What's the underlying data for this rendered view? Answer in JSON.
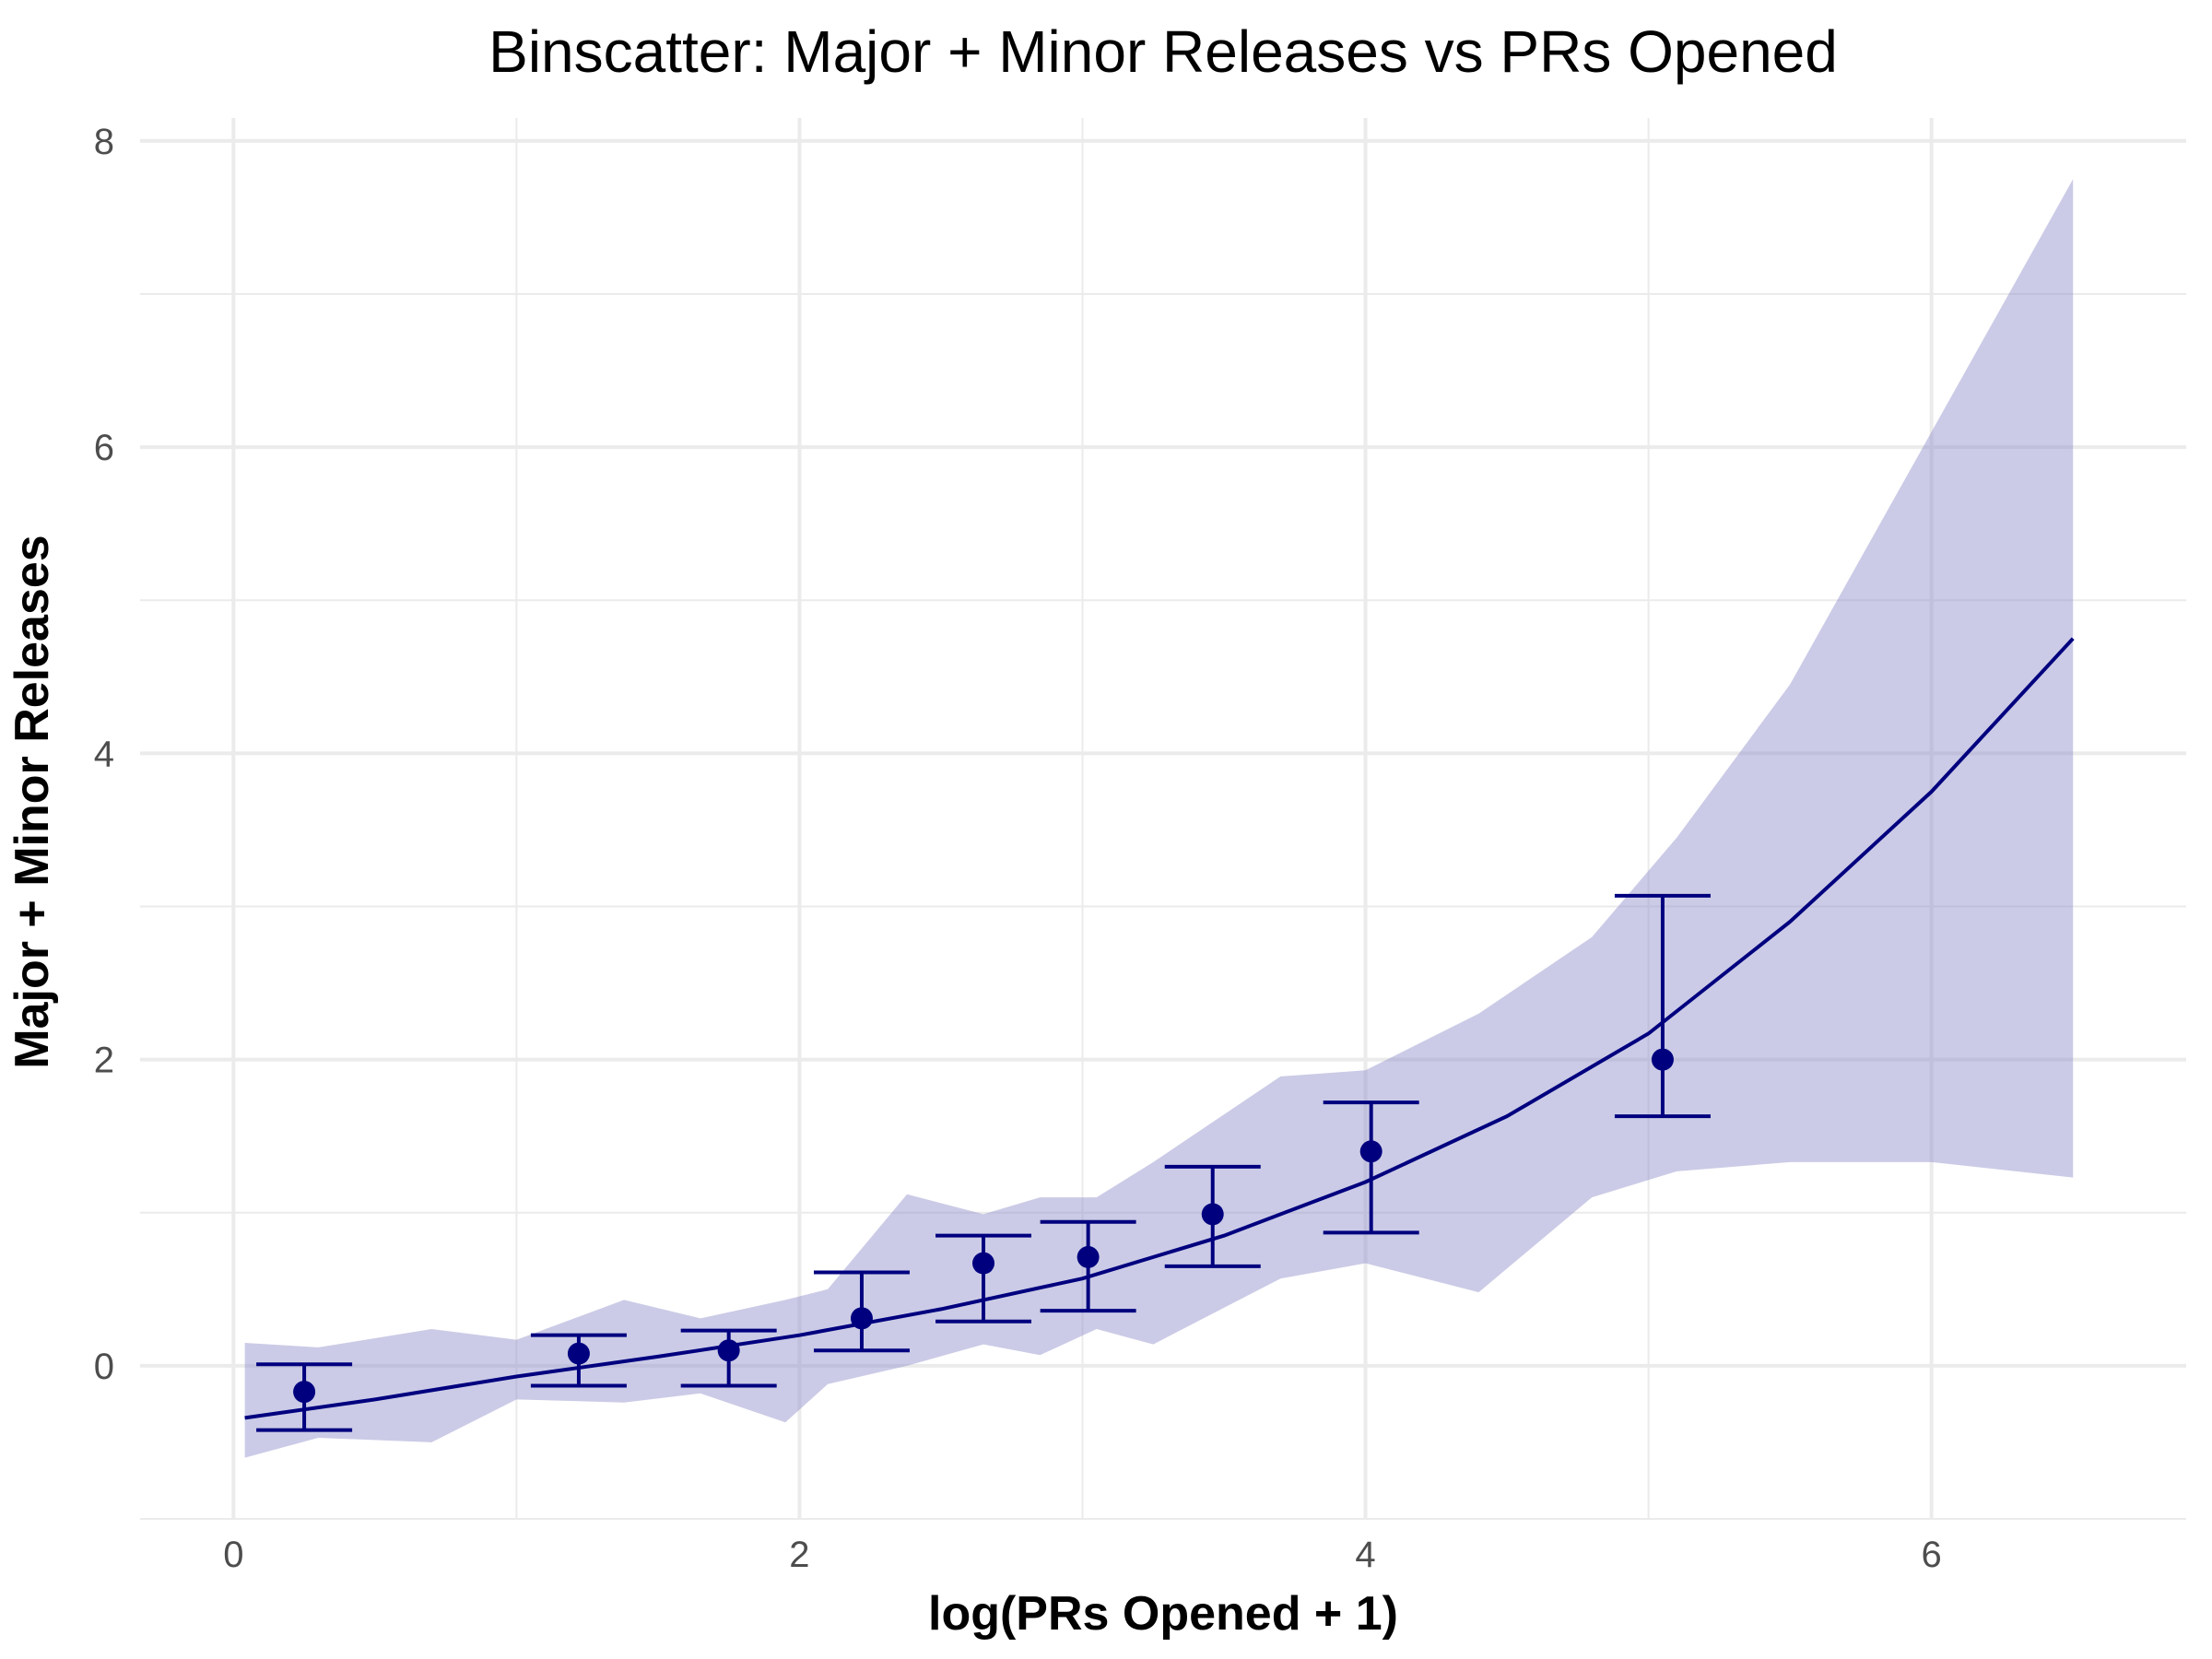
{
  "chart_data": {
    "type": "scatter",
    "title": "Binscatter: Major + Minor Releases vs PRs Opened",
    "xlabel": "log(PRs Opened + 1)",
    "ylabel": "Major + Minor Releases",
    "xlim": [
      -0.33,
      6.9
    ],
    "ylim": [
      -1.0,
      8.15
    ],
    "x_ticks": [
      0,
      2,
      4,
      6
    ],
    "x_tick_labels": [
      "0",
      "2",
      "4",
      "6"
    ],
    "y_ticks": [
      0,
      2,
      4,
      6,
      8
    ],
    "y_tick_labels": [
      "0",
      "2",
      "4",
      "6",
      "8"
    ],
    "x_minor_ticks": [
      1,
      3,
      5
    ],
    "y_minor_ticks": [
      -1,
      1,
      3,
      5,
      7
    ],
    "grid": true,
    "legend": "none",
    "colors": {
      "point": "#00007f",
      "line": "#00007f",
      "band": "#8c8cc9",
      "band_opacity": 0.45
    },
    "points": [
      {
        "x": 0.25,
        "y": -0.17,
        "lo": -0.42,
        "hi": 0.01
      },
      {
        "x": 1.22,
        "y": 0.08,
        "lo": -0.13,
        "hi": 0.2
      },
      {
        "x": 1.75,
        "y": 0.1,
        "lo": -0.13,
        "hi": 0.23
      },
      {
        "x": 2.22,
        "y": 0.31,
        "lo": 0.1,
        "hi": 0.61
      },
      {
        "x": 2.65,
        "y": 0.67,
        "lo": 0.29,
        "hi": 0.85
      },
      {
        "x": 3.02,
        "y": 0.71,
        "lo": 0.36,
        "hi": 0.94
      },
      {
        "x": 3.46,
        "y": 0.99,
        "lo": 0.65,
        "hi": 1.3
      },
      {
        "x": 4.02,
        "y": 1.4,
        "lo": 0.87,
        "hi": 1.72
      },
      {
        "x": 5.05,
        "y": 2.0,
        "lo": 1.63,
        "hi": 3.07
      }
    ],
    "fit_line": {
      "x": [
        0.04,
        0.5,
        1.0,
        1.5,
        2.0,
        2.5,
        3.0,
        3.5,
        4.0,
        4.5,
        5.0,
        5.5,
        6.0,
        6.5
      ],
      "y": [
        -0.34,
        -0.22,
        -0.07,
        0.06,
        0.2,
        0.37,
        0.57,
        0.85,
        1.2,
        1.63,
        2.17,
        2.9,
        3.75,
        4.75
      ]
    },
    "confidence_band": {
      "x": [
        0.04,
        0.3,
        0.7,
        1.0,
        1.38,
        1.65,
        1.95,
        2.1,
        2.38,
        2.65,
        2.85,
        3.05,
        3.25,
        3.7,
        4.0,
        4.4,
        4.8,
        5.1,
        5.5,
        6.0,
        6.5
      ],
      "upper": [
        0.15,
        0.12,
        0.24,
        0.17,
        0.43,
        0.31,
        0.43,
        0.5,
        1.12,
        0.99,
        1.1,
        1.1,
        1.33,
        1.89,
        1.93,
        2.3,
        2.8,
        3.45,
        4.45,
        6.1,
        7.75
      ],
      "lower": [
        -0.6,
        -0.47,
        -0.5,
        -0.22,
        -0.24,
        -0.18,
        -0.37,
        -0.12,
        0.0,
        0.14,
        0.07,
        0.24,
        0.14,
        0.57,
        0.67,
        0.48,
        1.1,
        1.27,
        1.33,
        1.33,
        1.23
      ]
    }
  }
}
